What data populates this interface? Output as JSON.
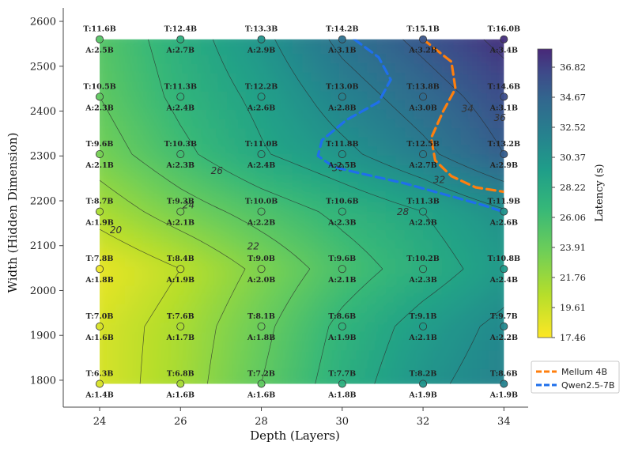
{
  "chart_data": {
    "type": "heatmap",
    "title": "",
    "xlabel": "Depth (Layers)",
    "ylabel": "Width (Hidden Dimension)",
    "x_ticks": [
      24,
      26,
      28,
      30,
      32,
      34
    ],
    "y_ticks": [
      1800,
      1900,
      2000,
      2100,
      2200,
      2300,
      2400,
      2500,
      2600
    ],
    "xlim": [
      23.1,
      34.6
    ],
    "ylim": [
      1740,
      2630
    ],
    "colorbar": {
      "label": "Latency (s)",
      "ticks": [
        "36.82",
        "34.67",
        "32.52",
        "30.37",
        "28.22",
        "26.06",
        "23.91",
        "21.76",
        "19.61",
        "17.46"
      ],
      "min": 17.46,
      "max": 36.82
    },
    "contour_labels": [
      {
        "text": "20",
        "x": 24.4,
        "y": 2128
      },
      {
        "text": "22",
        "x": 27.8,
        "y": 2092
      },
      {
        "text": "24",
        "x": 26.2,
        "y": 2183
      },
      {
        "text": "26",
        "x": 26.9,
        "y": 2260
      },
      {
        "text": "28",
        "x": 31.5,
        "y": 2168
      },
      {
        "text": "30",
        "x": 29.9,
        "y": 2266
      },
      {
        "text": "32",
        "x": 32.4,
        "y": 2240
      },
      {
        "text": "34",
        "x": 33.1,
        "y": 2398
      },
      {
        "text": "36",
        "x": 33.9,
        "y": 2378
      }
    ],
    "depths": [
      24,
      26,
      28,
      30,
      32,
      34
    ],
    "widths": [
      1792,
      1920,
      2048,
      2176,
      2304,
      2432,
      2560
    ],
    "points": [
      {
        "d": 24,
        "w": 2560,
        "t": "T:11.6B",
        "a": "A:2.5B"
      },
      {
        "d": 26,
        "w": 2560,
        "t": "T:12.4B",
        "a": "A:2.7B"
      },
      {
        "d": 28,
        "w": 2560,
        "t": "T:13.3B",
        "a": "A:2.9B"
      },
      {
        "d": 30,
        "w": 2560,
        "t": "T:14.2B",
        "a": "A:3.1B"
      },
      {
        "d": 32,
        "w": 2560,
        "t": "T:15.1B",
        "a": "A:3.2B"
      },
      {
        "d": 34,
        "w": 2560,
        "t": "T:16.0B",
        "a": "A:3.4B"
      },
      {
        "d": 24,
        "w": 2432,
        "t": "T:10.5B",
        "a": "A:2.3B"
      },
      {
        "d": 26,
        "w": 2432,
        "t": "T:11.3B",
        "a": "A:2.4B"
      },
      {
        "d": 28,
        "w": 2432,
        "t": "T:12.2B",
        "a": "A:2.6B"
      },
      {
        "d": 30,
        "w": 2432,
        "t": "T:13.0B",
        "a": "A:2.8B"
      },
      {
        "d": 32,
        "w": 2432,
        "t": "T:13.8B",
        "a": "A:3.0B"
      },
      {
        "d": 34,
        "w": 2432,
        "t": "T:14.6B",
        "a": "A:3.1B"
      },
      {
        "d": 24,
        "w": 2304,
        "t": "T:9.6B",
        "a": "A:2.1B"
      },
      {
        "d": 26,
        "w": 2304,
        "t": "T:10.3B",
        "a": "A:2.3B"
      },
      {
        "d": 28,
        "w": 2304,
        "t": "T:11.0B",
        "a": "A:2.4B"
      },
      {
        "d": 30,
        "w": 2304,
        "t": "T:11.8B",
        "a": "A:2.5B"
      },
      {
        "d": 32,
        "w": 2304,
        "t": "T:12.5B",
        "a": "A:2.7B"
      },
      {
        "d": 34,
        "w": 2304,
        "t": "T:13.2B",
        "a": "A:2.9B"
      },
      {
        "d": 24,
        "w": 2176,
        "t": "T:8.7B",
        "a": "A:1.9B"
      },
      {
        "d": 26,
        "w": 2176,
        "t": "T:9.3B",
        "a": "A:2.1B"
      },
      {
        "d": 28,
        "w": 2176,
        "t": "T:10.0B",
        "a": "A:2.2B"
      },
      {
        "d": 30,
        "w": 2176,
        "t": "T:10.6B",
        "a": "A:2.3B"
      },
      {
        "d": 32,
        "w": 2176,
        "t": "T:11.3B",
        "a": "A:2.5B"
      },
      {
        "d": 34,
        "w": 2176,
        "t": "T:11.9B",
        "a": "A:2.6B"
      },
      {
        "d": 24,
        "w": 2048,
        "t": "T:7.8B",
        "a": "A:1.8B"
      },
      {
        "d": 26,
        "w": 2048,
        "t": "T:8.4B",
        "a": "A:1.9B"
      },
      {
        "d": 28,
        "w": 2048,
        "t": "T:9.0B",
        "a": "A:2.0B"
      },
      {
        "d": 30,
        "w": 2048,
        "t": "T:9.6B",
        "a": "A:2.1B"
      },
      {
        "d": 32,
        "w": 2048,
        "t": "T:10.2B",
        "a": "A:2.3B"
      },
      {
        "d": 34,
        "w": 2048,
        "t": "T:10.8B",
        "a": "A:2.4B"
      },
      {
        "d": 24,
        "w": 1920,
        "t": "T:7.0B",
        "a": "A:1.6B"
      },
      {
        "d": 26,
        "w": 1920,
        "t": "T:7.6B",
        "a": "A:1.7B"
      },
      {
        "d": 28,
        "w": 1920,
        "t": "T:8.1B",
        "a": "A:1.8B"
      },
      {
        "d": 30,
        "w": 1920,
        "t": "T:8.6B",
        "a": "A:1.9B"
      },
      {
        "d": 32,
        "w": 1920,
        "t": "T:9.1B",
        "a": "A:2.1B"
      },
      {
        "d": 34,
        "w": 1920,
        "t": "T:9.7B",
        "a": "A:2.2B"
      },
      {
        "d": 24,
        "w": 1792,
        "t": "T:6.3B",
        "a": "A:1.4B"
      },
      {
        "d": 26,
        "w": 1792,
        "t": "T:6.8B",
        "a": "A:1.6B"
      },
      {
        "d": 28,
        "w": 1792,
        "t": "T:7.2B",
        "a": "A:1.6B"
      },
      {
        "d": 30,
        "w": 1792,
        "t": "T:7.7B",
        "a": "A:1.8B"
      },
      {
        "d": 32,
        "w": 1792,
        "t": "T:8.2B",
        "a": "A:1.9B"
      },
      {
        "d": 34,
        "w": 1792,
        "t": "T:8.6B",
        "a": "A:1.9B"
      }
    ],
    "latency_grid": [
      [
        19.0,
        21.0,
        24.0,
        27.0,
        29.5,
        31.0
      ],
      [
        19.0,
        20.8,
        23.5,
        26.5,
        28.8,
        30.5
      ],
      [
        18.2,
        20.0,
        22.5,
        25.0,
        27.0,
        29.0
      ],
      [
        20.8,
        23.0,
        24.8,
        26.5,
        28.0,
        29.8
      ],
      [
        23.0,
        25.5,
        27.8,
        29.5,
        31.5,
        34.0
      ],
      [
        24.0,
        26.5,
        28.5,
        31.0,
        33.0,
        35.0
      ],
      [
        24.5,
        27.0,
        29.5,
        32.5,
        34.5,
        36.5
      ]
    ],
    "series": [
      {
        "name": "Mellum 4B",
        "color": "#ff7f0e",
        "x": [
          32.0,
          32.7,
          32.8,
          32.5,
          32.2,
          32.3,
          32.7,
          33.3,
          34.0
        ],
        "y": [
          2560,
          2510,
          2450,
          2400,
          2340,
          2290,
          2255,
          2230,
          2220
        ]
      },
      {
        "name": "Qwen2.5-7B",
        "color": "#1f6feb",
        "x": [
          30.3,
          30.9,
          31.2,
          30.9,
          30.1,
          29.5,
          29.4,
          29.8,
          30.5,
          31.5,
          32.5,
          33.5,
          34.0
        ],
        "y": [
          2560,
          2520,
          2470,
          2420,
          2380,
          2335,
          2300,
          2275,
          2260,
          2240,
          2215,
          2190,
          2175
        ]
      }
    ],
    "legend_position": "right"
  }
}
